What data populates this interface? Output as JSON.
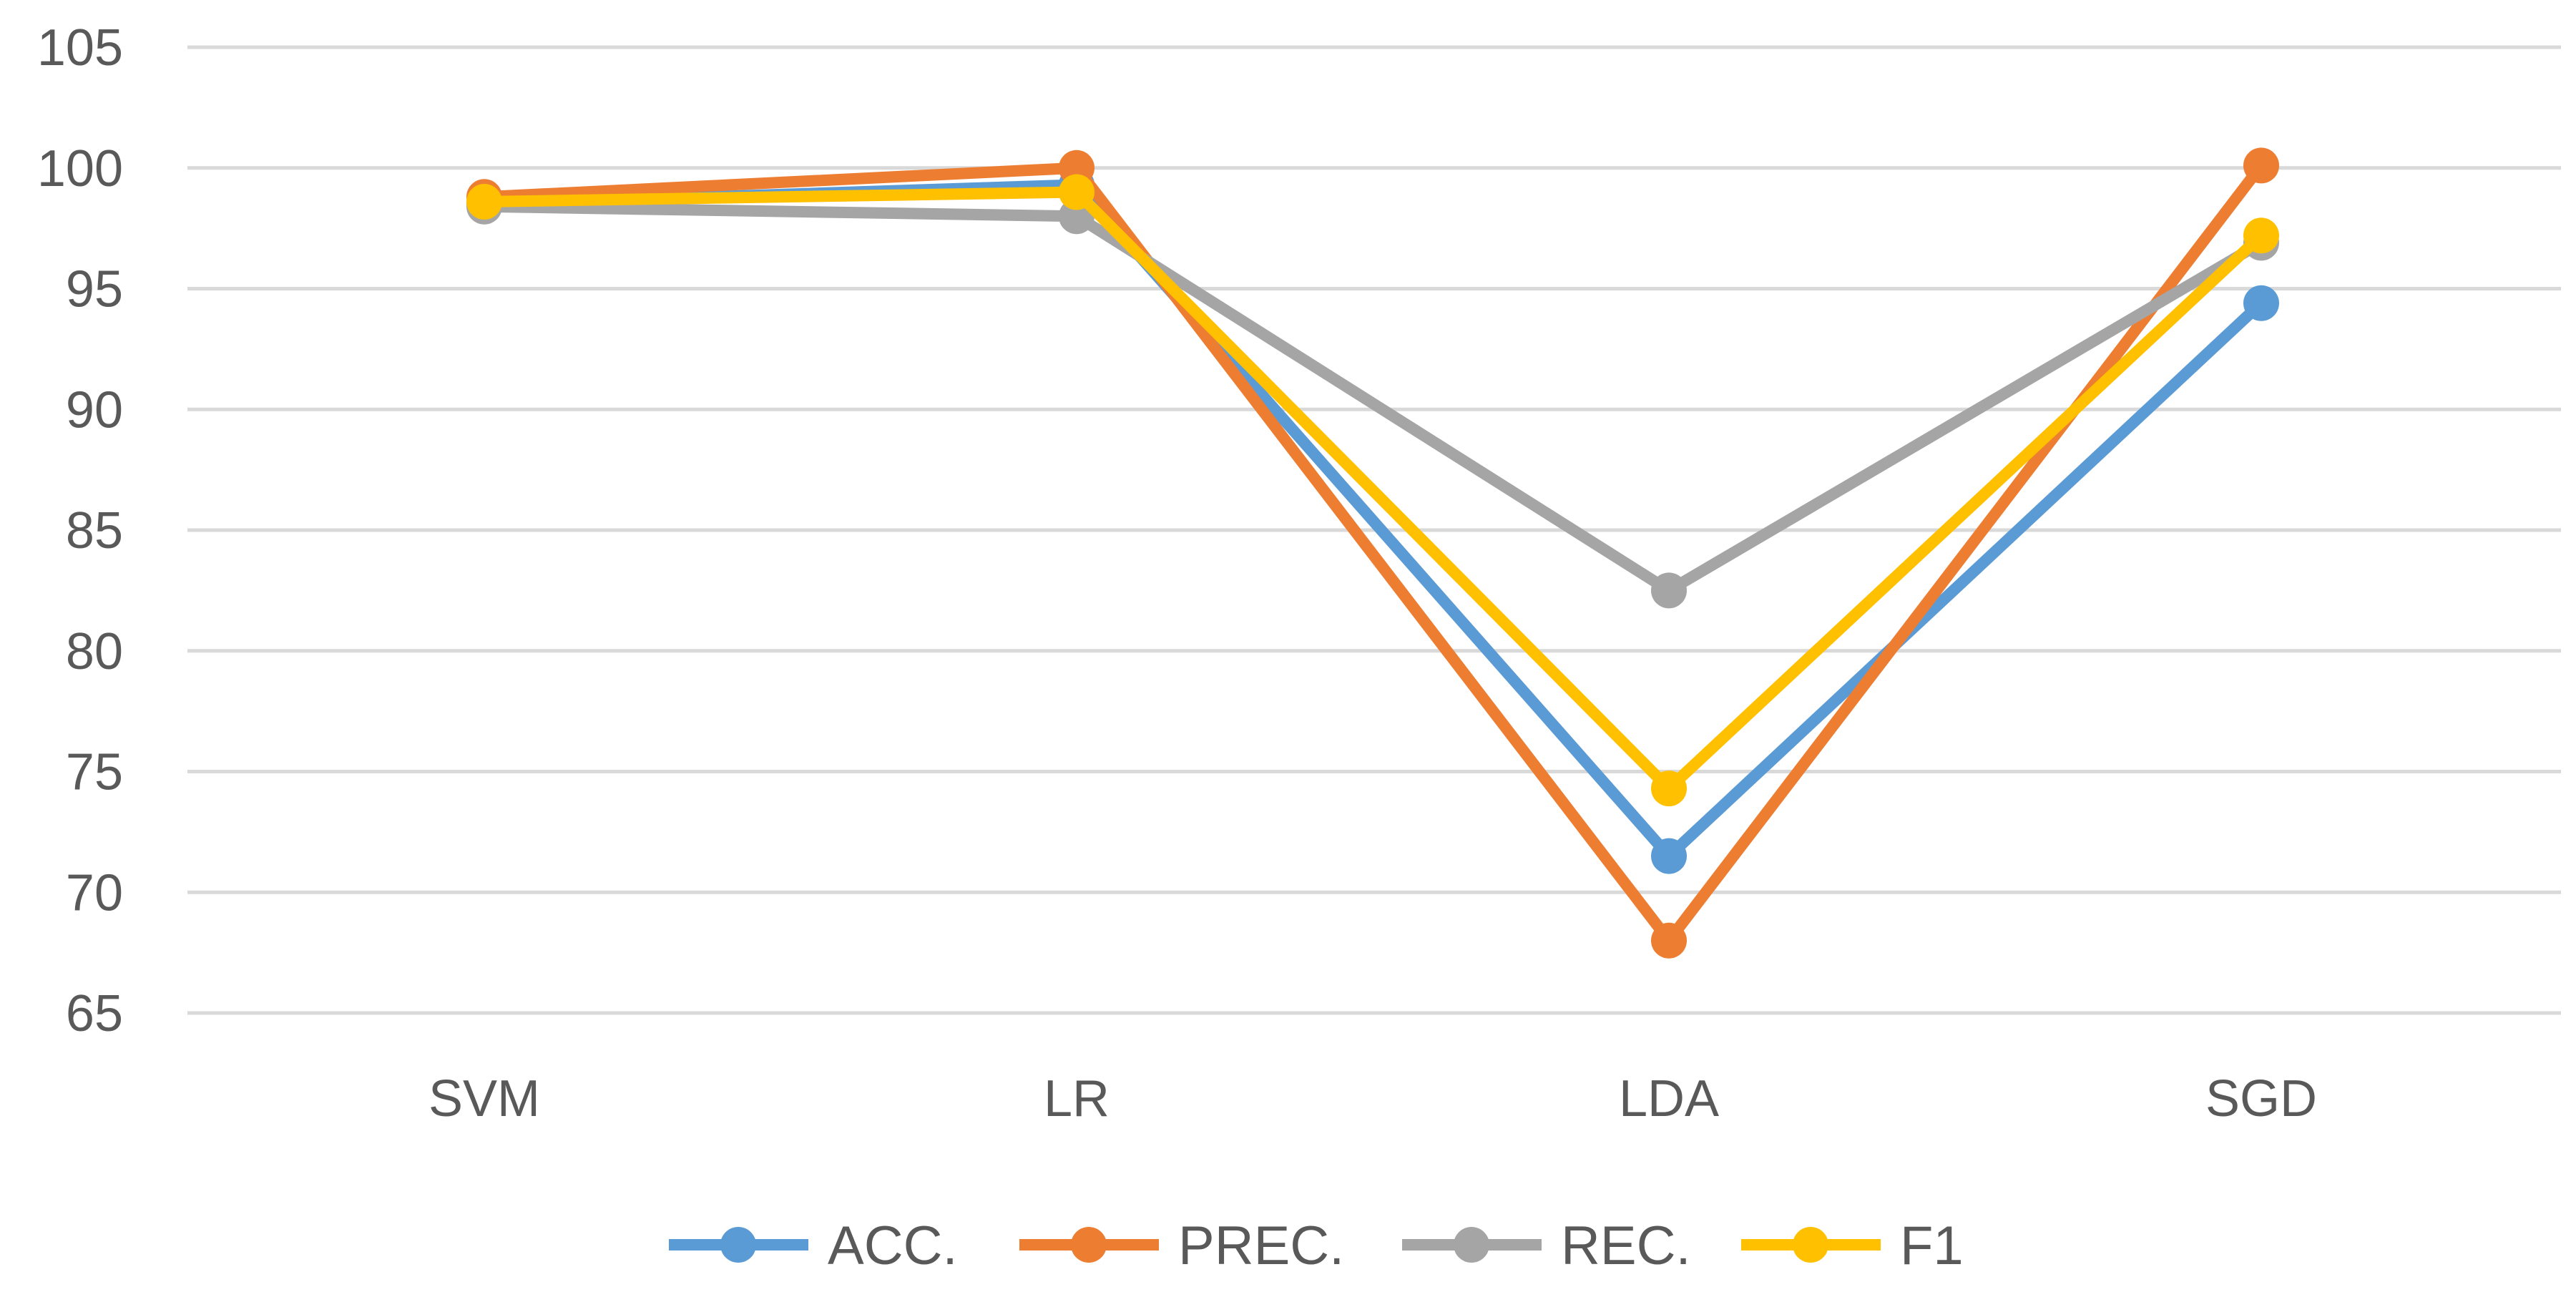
{
  "chart_data": {
    "type": "line",
    "title": "",
    "xlabel": "",
    "ylabel": "",
    "categories": [
      "SVM",
      "LR",
      "LDA",
      "SGD"
    ],
    "ylim": [
      65,
      105
    ],
    "yticks": [
      65,
      70,
      75,
      80,
      85,
      90,
      95,
      100,
      105
    ],
    "ytick_labels": [
      "65",
      "70",
      "75",
      "80",
      "85",
      "90",
      "95",
      "100",
      "105"
    ],
    "grid": true,
    "legend_position": "bottom",
    "series": [
      {
        "name": "ACC.",
        "color": "#5B9BD5",
        "values": [
          98.5,
          99.3,
          71.5,
          94.4
        ]
      },
      {
        "name": "PREC.",
        "color": "#ED7D31",
        "values": [
          98.8,
          100.0,
          68.0,
          100.1
        ]
      },
      {
        "name": "REC.",
        "color": "#A5A5A5",
        "values": [
          98.4,
          98.0,
          82.5,
          96.9
        ]
      },
      {
        "name": "F1",
        "color": "#FFC000",
        "values": [
          98.6,
          99.0,
          74.3,
          97.2
        ]
      }
    ]
  }
}
